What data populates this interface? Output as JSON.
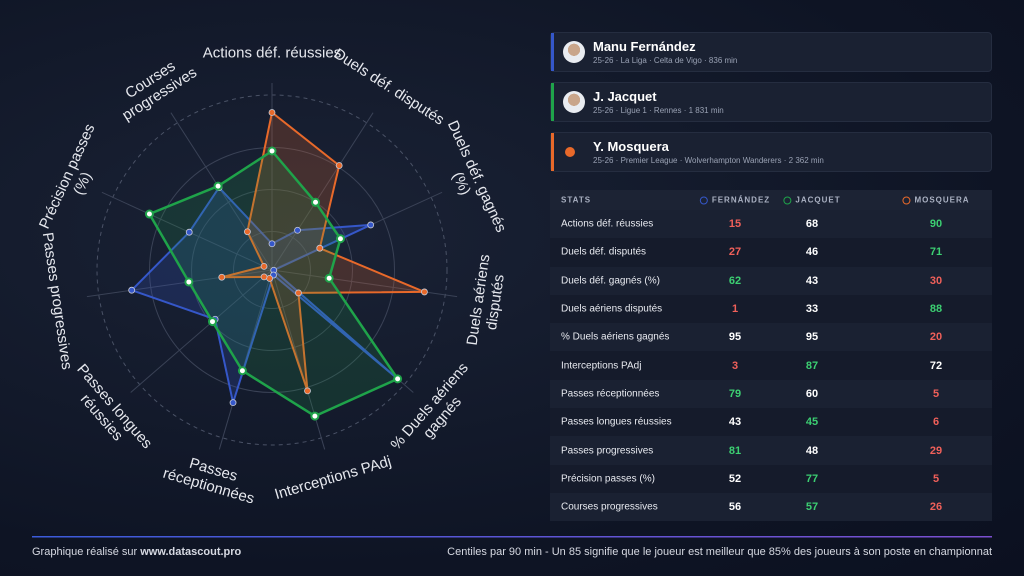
{
  "chart_data": {
    "type": "radar",
    "categories": [
      "Actions déf. réussies",
      "Duels déf. disputés",
      "Duels déf. gagnés (%)",
      "Duels aériens disputés",
      "% Duels aériens gagnés",
      "Interceptions PAdj",
      "Passes réceptionnées",
      "Passes longues réussies",
      "Passes progressives",
      "Précision passes (%)",
      "Courses progressives"
    ],
    "series": [
      {
        "name": "Manu Fernández",
        "info": "25-26 · La Liga · Celta de Vigo · 836 min",
        "color": "#3557c9",
        "values": [
          15,
          27,
          62,
          1,
          95,
          3,
          79,
          43,
          81,
          52,
          56
        ]
      },
      {
        "name": "J. Jacquet",
        "info": "25-26 · Ligue 1 · Rennes · 1 831 min",
        "color": "#1fa34a",
        "values": [
          68,
          46,
          43,
          33,
          95,
          87,
          60,
          45,
          48,
          77,
          57
        ]
      },
      {
        "name": "Y. Mosquera",
        "info": "25-26 · Premier League · Wolverhampton Wanderers · 2 362 min",
        "color": "#e8692a",
        "values": [
          90,
          71,
          30,
          88,
          20,
          72,
          5,
          6,
          29,
          5,
          26
        ]
      }
    ],
    "rlim": [
      0,
      100
    ],
    "grid": true
  },
  "table": {
    "columns": [
      "STATS",
      "FERNÁNDEZ",
      "JACQUET",
      "MOSQUERA"
    ]
  },
  "footer": {
    "credit": "Graphique réalisé sur",
    "site": "www.datascout.pro",
    "note": "Centiles par 90 min - Un 85 signifie que le joueur est meilleur que 85% des joueurs à son poste en championnat"
  }
}
